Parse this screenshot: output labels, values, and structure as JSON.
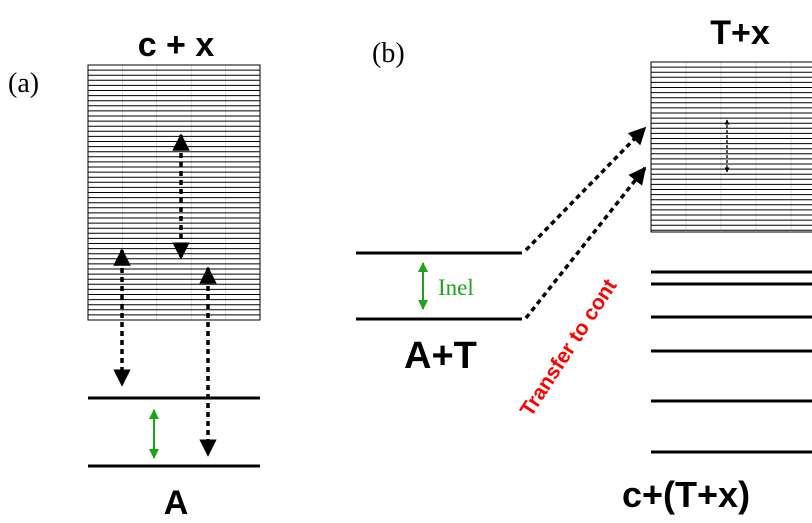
{
  "panel_a": {
    "tag": "(a)",
    "continuum_label": "c + x",
    "bound_label": "A"
  },
  "panel_b": {
    "tag": "(b)",
    "continuum_label": "T+x",
    "channel_label": "A+T",
    "inelastic_label": "Inel",
    "transfer_label": "Transfer to cont",
    "lower_label": "c+(T+x)"
  },
  "colors": {
    "line": "#000000",
    "inelastic_arrow": "#1aa51a",
    "transfer_text": "#ff0000",
    "background": "#ffffff"
  }
}
